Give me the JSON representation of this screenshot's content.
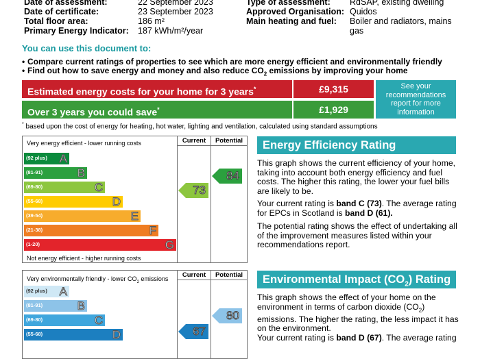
{
  "details": {
    "date_assessment_label": "Date of assessment:",
    "date_assessment_value": "22 September 2023",
    "date_certificate_label": "Date of certificate:",
    "date_certificate_value": "23 September 2023",
    "floor_area_label": "Total floor area:",
    "floor_area_value": "186 m²",
    "pei_label": "Primary Energy Indicator:",
    "pei_value": "187 kWh/m²/year",
    "type_label": "Type of assessment:",
    "type_value": "RdSAP, existing dwelling",
    "org_label": "Approved Organisation:",
    "org_value": "Quidos",
    "heating_label": "Main heating and fuel:",
    "heating_value_1": "Boiler and radiators, mains",
    "heating_value_2": "gas"
  },
  "uses": {
    "title": "You can use this document to:",
    "bullet_1": "Compare current ratings of properties to see which are more energy efficient and environmentally friendly",
    "bullet_2_pre": "Find out how to save energy and money and also reduce CO",
    "bullet_2_sub": "2",
    "bullet_2_post": " emissions by improving your home"
  },
  "costs": {
    "estimated_label": "Estimated energy costs for your home for 3 years",
    "estimated_star": "*",
    "estimated_value": "£9,315",
    "saving_label": "Over 3 years you could save",
    "saving_star": "*",
    "saving_value": "£1,929",
    "recommendations": "See your recommendations report for more information",
    "footnote_star": "*",
    "footnote": " based upon the cost of energy for heating, hot water, lighting and ventilation, calculated using standard assumptions",
    "colors": {
      "red": "#c8202b",
      "green": "#3a9b3a",
      "teal": "#2aa8b1"
    }
  },
  "energy_chart": {
    "top_text": "Very energy efficient - lower running costs",
    "bottom_text": "Not energy efficient - higher running costs",
    "current_header": "Current",
    "potential_header": "Potential",
    "current_value": "73",
    "potential_value": "84",
    "bands": [
      {
        "range": "(92 plus)",
        "letter": "A",
        "color": "#0b8a3c"
      },
      {
        "range": "(81-91)",
        "letter": "B",
        "color": "#2ba03e"
      },
      {
        "range": "(69-80)",
        "letter": "C",
        "color": "#8dc63f"
      },
      {
        "range": "(55-68)",
        "letter": "D",
        "color": "#ffcc00"
      },
      {
        "range": "(39-54)",
        "letter": "E",
        "color": "#f7ac2d"
      },
      {
        "range": "(21-38)",
        "letter": "F",
        "color": "#ef7d22"
      },
      {
        "range": "(1-20)",
        "letter": "G",
        "color": "#e3242b"
      }
    ]
  },
  "energy_text": {
    "title": "Energy Efficiency Rating",
    "p1": "This graph shows the current efficiency of your home, taking into account both energy efficiency and fuel costs. The higher this rating, the lower your fuel bills are likely to be.",
    "p2_a": "Your current rating is ",
    "p2_b": "band C (73)",
    "p2_c": ". The average rating for EPCs in Scotland is ",
    "p2_d": "band D (61).",
    "p3": "The potential rating shows the effect of undertaking all of the improvement measures listed within your recommendations report."
  },
  "env_chart": {
    "top_text_pre": "Very environmentally friendly - lower CO",
    "top_text_sub": "2",
    "top_text_post": " emissions",
    "current_header": "Current",
    "potential_header": "Potential",
    "current_value": "67",
    "potential_value": "80",
    "bands": [
      {
        "range": "(92 plus)",
        "letter": "A",
        "color": "#cfe8f5"
      },
      {
        "range": "(81-91)",
        "letter": "B",
        "color": "#8dc3e8"
      },
      {
        "range": "(69-80)",
        "letter": "C",
        "color": "#3fa6dd"
      },
      {
        "range": "(55-68)",
        "letter": "D",
        "color": "#1c7fc0"
      }
    ]
  },
  "env_text": {
    "title_pre": "Environmental Impact (CO",
    "title_sub": "2",
    "title_post": ") Rating",
    "p1_a": "This graph shows the effect of your home on the environment in terms of carbon dioxide (CO",
    "p1_sub": "2",
    "p1_b": ") emissions. The higher the rating, the less impact it has on the environment.",
    "p2_a": "Your current rating is ",
    "p2_b": "band D (67)",
    "p2_c": ". The average rating"
  }
}
